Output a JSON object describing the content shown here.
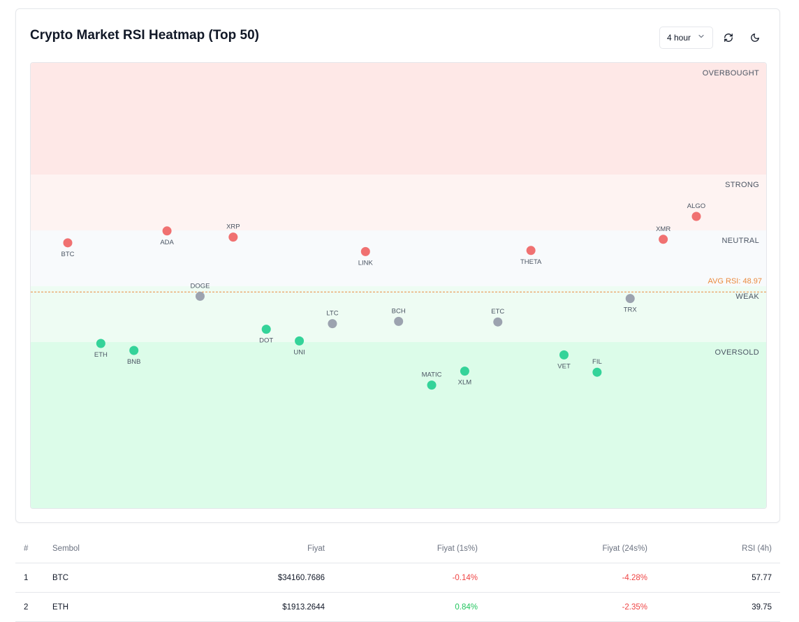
{
  "header": {
    "title": "Crypto Market RSI Heatmap (Top 50)",
    "timeframe_value": "4 hour",
    "refresh_icon": "refresh-icon",
    "theme_icon": "moon-icon"
  },
  "chart_data": {
    "type": "scatter",
    "title": "",
    "ylim": [
      10,
      90
    ],
    "zones": [
      {
        "name": "OVERBOUGHT",
        "from": 70,
        "to": 90,
        "color": "#fee8e7"
      },
      {
        "name": "STRONG",
        "from": 60,
        "to": 70,
        "color": "#fef3f2"
      },
      {
        "name": "NEUTRAL",
        "from": 50,
        "to": 60,
        "color": "#f8fafc"
      },
      {
        "name": "WEAK",
        "from": 40,
        "to": 50,
        "color": "#eefcf3"
      },
      {
        "name": "OVERSOLD",
        "from": 10,
        "to": 40,
        "color": "#dcfce9"
      }
    ],
    "avg_label": "AVG RSI: 48.97",
    "avg_value": 48.97,
    "colors": {
      "strong": "#f07171",
      "neutral": "#9ca3af",
      "weak": "#34d399",
      "avg": "#ea8a3e"
    },
    "points": [
      {
        "symbol": "BTC",
        "rsi": 57.77,
        "zone": "strong",
        "label_pos": "below"
      },
      {
        "symbol": "ETH",
        "rsi": 39.75,
        "zone": "weak",
        "label_pos": "below"
      },
      {
        "symbol": "BNB",
        "rsi": 38.5,
        "zone": "weak",
        "label_pos": "below"
      },
      {
        "symbol": "ADA",
        "rsi": 59.9,
        "zone": "strong",
        "label_pos": "below"
      },
      {
        "symbol": "DOGE",
        "rsi": 48.2,
        "zone": "neutral",
        "label_pos": "above"
      },
      {
        "symbol": "XRP",
        "rsi": 58.8,
        "zone": "strong",
        "label_pos": "above"
      },
      {
        "symbol": "DOT",
        "rsi": 42.3,
        "zone": "weak",
        "label_pos": "below"
      },
      {
        "symbol": "UNI",
        "rsi": 40.2,
        "zone": "weak",
        "label_pos": "below"
      },
      {
        "symbol": "LTC",
        "rsi": 43.3,
        "zone": "neutral",
        "label_pos": "above"
      },
      {
        "symbol": "LINK",
        "rsi": 56.2,
        "zone": "strong",
        "label_pos": "below"
      },
      {
        "symbol": "BCH",
        "rsi": 43.7,
        "zone": "neutral",
        "label_pos": "above"
      },
      {
        "symbol": "MATIC",
        "rsi": 32.3,
        "zone": "weak",
        "label_pos": "above"
      },
      {
        "symbol": "XLM",
        "rsi": 34.8,
        "zone": "weak",
        "label_pos": "below"
      },
      {
        "symbol": "ETC",
        "rsi": 43.6,
        "zone": "neutral",
        "label_pos": "above"
      },
      {
        "symbol": "THETA",
        "rsi": 56.4,
        "zone": "strong",
        "label_pos": "below"
      },
      {
        "symbol": "VET",
        "rsi": 37.7,
        "zone": "weak",
        "label_pos": "below"
      },
      {
        "symbol": "FIL",
        "rsi": 34.6,
        "zone": "weak",
        "label_pos": "above"
      },
      {
        "symbol": "TRX",
        "rsi": 47.8,
        "zone": "neutral",
        "label_pos": "below"
      },
      {
        "symbol": "XMR",
        "rsi": 58.4,
        "zone": "strong",
        "label_pos": "above"
      },
      {
        "symbol": "ALGO",
        "rsi": 62.5,
        "zone": "strong",
        "label_pos": "above"
      }
    ]
  },
  "table": {
    "headers": {
      "idx": "#",
      "symbol": "Sembol",
      "price": "Fiyat",
      "change_1h": "Fiyat (1s%)",
      "change_24h": "Fiyat (24s%)",
      "rsi": "RSI (4h)"
    },
    "rows": [
      {
        "idx": "1",
        "symbol": "BTC",
        "price": "$34160.7686",
        "change_1h": "-0.14%",
        "change_24h": "-4.28%",
        "rsi": "57.77"
      },
      {
        "idx": "2",
        "symbol": "ETH",
        "price": "$1913.2644",
        "change_1h": "0.84%",
        "change_24h": "-2.35%",
        "rsi": "39.75"
      }
    ]
  }
}
